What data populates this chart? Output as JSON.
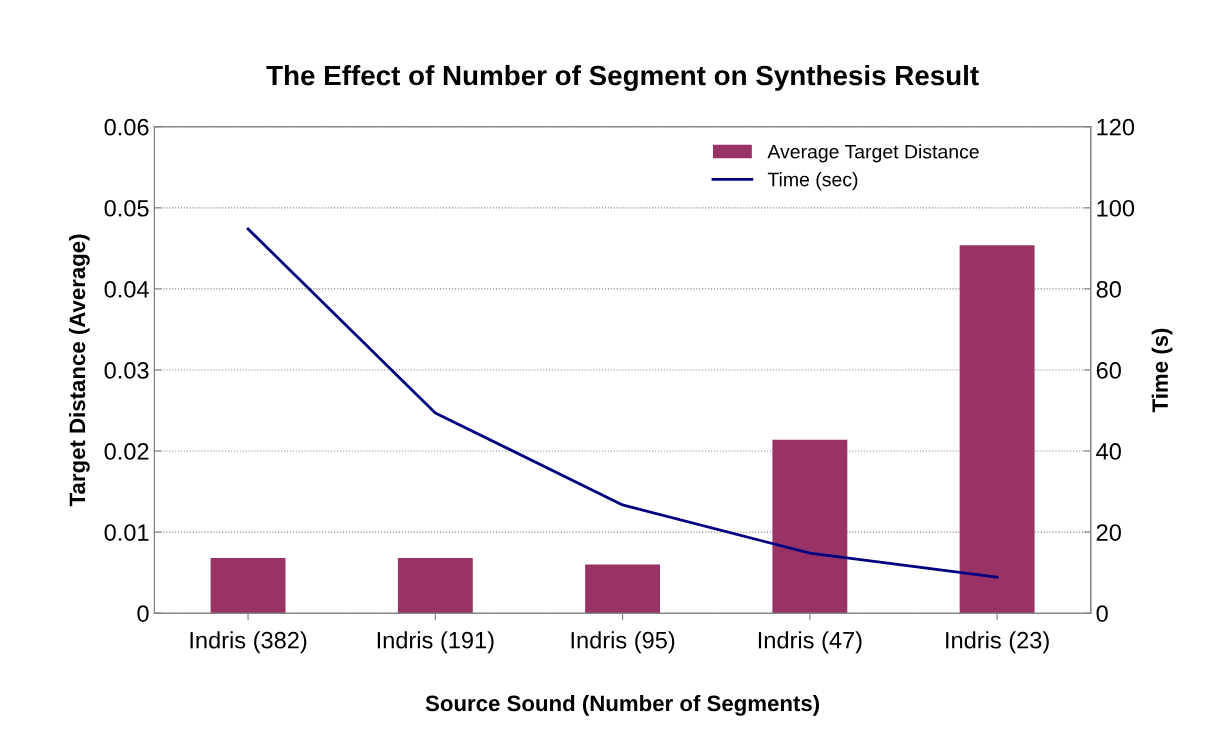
{
  "chart_data": {
    "type": "bar",
    "title": "The Effect of Number of Segment on Synthesis Result",
    "xlabel": "Source Sound (Number of Segments)",
    "ylabel": "Target Distance (Average)",
    "y2label": "Time (s)",
    "categories": [
      "Indris (382)",
      "Indris (191)",
      "Indris (95)",
      "Indris (47)",
      "Indris (23)"
    ],
    "series": [
      {
        "name": "Average Target Distance",
        "color": "#993366",
        "values": [
          0.0068,
          0.0068,
          0.006,
          0.0214,
          0.0454
        ]
      },
      {
        "name": "Time (sec)",
        "type": "line",
        "axis": "y2",
        "color": "#000080",
        "marker": "none",
        "values": [
          94.8,
          49.4,
          26.7,
          14.8,
          8.9
        ]
      }
    ],
    "ylim": [
      0,
      0.06
    ],
    "yticks": [
      0,
      0.01,
      0.02,
      0.03,
      0.04,
      0.05,
      0.06
    ],
    "y2lim": [
      0,
      120
    ],
    "y2ticks": [
      0,
      20,
      40,
      60,
      80,
      100,
      120
    ],
    "grid": "y",
    "legend": "top right"
  }
}
